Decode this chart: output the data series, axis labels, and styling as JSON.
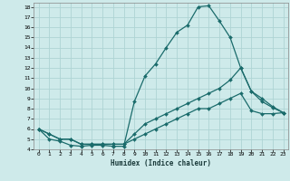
{
  "xlabel": "Humidex (Indice chaleur)",
  "bg_color": "#ceeaea",
  "line_color": "#1a6b6b",
  "grid_color": "#aed4d4",
  "xlim": [
    -0.5,
    23.5
  ],
  "ylim": [
    4,
    18.4
  ],
  "xticks": [
    0,
    1,
    2,
    3,
    4,
    5,
    6,
    7,
    8,
    9,
    10,
    11,
    12,
    13,
    14,
    15,
    16,
    17,
    18,
    19,
    20,
    21,
    22,
    23
  ],
  "yticks": [
    4,
    5,
    6,
    7,
    8,
    9,
    10,
    11,
    12,
    13,
    14,
    15,
    16,
    17,
    18
  ],
  "line1_x": [
    0,
    1,
    2,
    3,
    4,
    5,
    6,
    7,
    8,
    9,
    10,
    11,
    12,
    13,
    14,
    15,
    16,
    17,
    18,
    19,
    20,
    21,
    22,
    23
  ],
  "line1_y": [
    6,
    5,
    4.8,
    4.4,
    4.3,
    4.4,
    4.4,
    4.3,
    4.3,
    8.7,
    11.2,
    12.4,
    14,
    15.5,
    16.2,
    18,
    18.1,
    16.6,
    15,
    12,
    9.7,
    8.7,
    8.1,
    7.6
  ],
  "line2_x": [
    0,
    1,
    2,
    3,
    4,
    5,
    6,
    7,
    8,
    9,
    10,
    11,
    12,
    13,
    14,
    15,
    16,
    17,
    18,
    19,
    20,
    21,
    22,
    23
  ],
  "line2_y": [
    6,
    5.5,
    5,
    5,
    4.5,
    4.5,
    4.5,
    4.5,
    4.5,
    5.5,
    6.5,
    7,
    7.5,
    8,
    8.5,
    9,
    9.5,
    10,
    10.8,
    12,
    9.7,
    9,
    8.2,
    7.6
  ],
  "line3_x": [
    0,
    1,
    2,
    3,
    4,
    5,
    6,
    7,
    8,
    9,
    10,
    11,
    12,
    13,
    14,
    15,
    16,
    17,
    18,
    19,
    20,
    21,
    22,
    23
  ],
  "line3_y": [
    6,
    5.5,
    5,
    5,
    4.5,
    4.5,
    4.5,
    4.5,
    4.5,
    5,
    5.5,
    6,
    6.5,
    7,
    7.5,
    8,
    8,
    8.5,
    9,
    9.5,
    7.8,
    7.5,
    7.5,
    7.6
  ]
}
